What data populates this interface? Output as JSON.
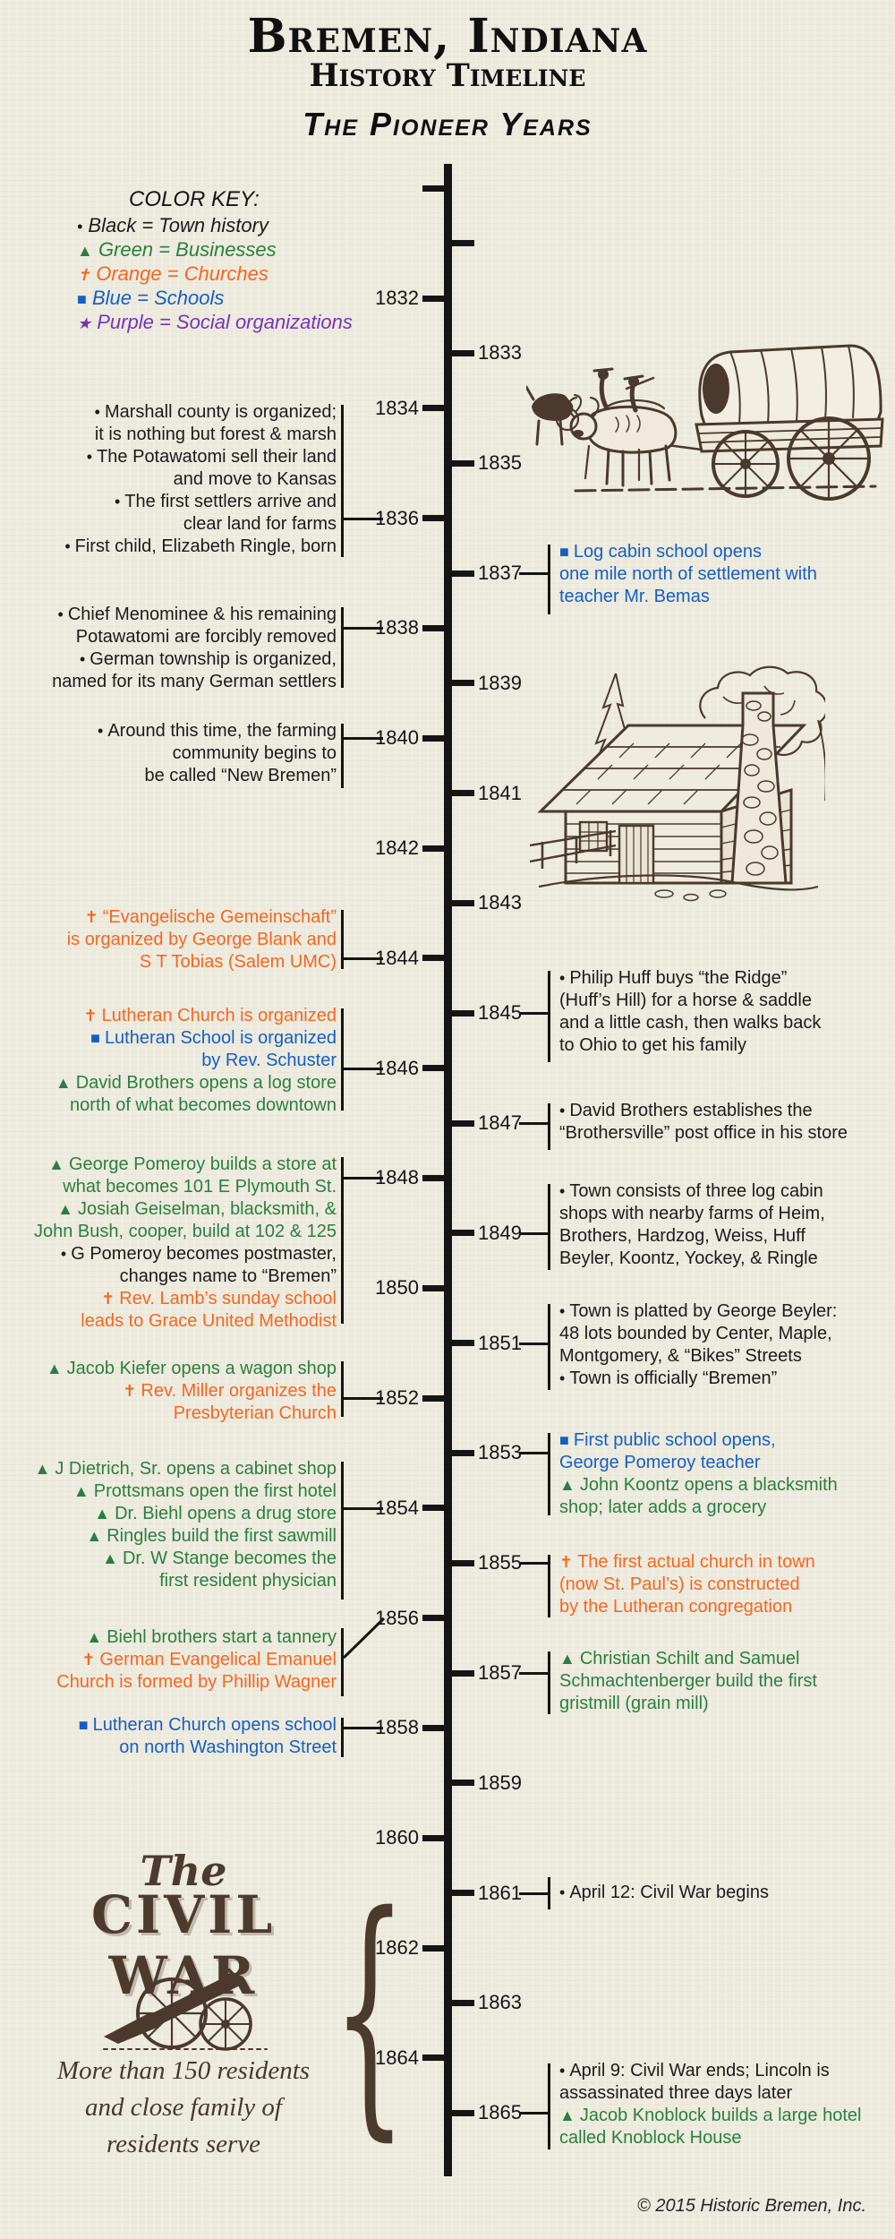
{
  "page": {
    "title_line1": "Bremen, Indiana",
    "title_line2": "History Timeline",
    "subtitle": "The Pioneer Years",
    "footer": "© 2015 Historic Bremen, Inc."
  },
  "colors": {
    "town": "#1b1b1b",
    "business": "#2a7f3f",
    "church": "#f4671f",
    "school": "#155fbf",
    "social": "#7634b8",
    "ink": "#151515",
    "sepia": "#4a392c",
    "paper": "#edeade"
  },
  "markers": {
    "town": "•",
    "business": "▲",
    "church": "✝",
    "school": "■",
    "social": "★"
  },
  "color_key": {
    "heading": "COLOR KEY:",
    "items": [
      {
        "category": "town",
        "label": "Black = Town history"
      },
      {
        "category": "business",
        "label": "Green = Businesses"
      },
      {
        "category": "church",
        "label": "Orange = Churches"
      },
      {
        "category": "school",
        "label": "Blue = Schools"
      },
      {
        "category": "social",
        "label": "Purple = Social organizations"
      }
    ]
  },
  "timeline": {
    "first_tick_year": 1830,
    "first_labeled_year": 1832,
    "last_year": 1865
  },
  "events": [
    {
      "id": "L1",
      "side": "left",
      "year": 1836,
      "items": [
        {
          "category": "town",
          "lines": [
            "Marshall county is organized;",
            "it is nothing but forest & marsh"
          ]
        },
        {
          "category": "town",
          "lines": [
            "The Potawatomi sell their land",
            "and move to Kansas"
          ]
        },
        {
          "category": "town",
          "lines": [
            "The first settlers arrive and",
            "clear land for farms"
          ]
        },
        {
          "category": "town",
          "lines": [
            "First child, Elizabeth Ringle, born"
          ]
        }
      ]
    },
    {
      "id": "L2",
      "side": "left",
      "year": 1838,
      "items": [
        {
          "category": "town",
          "lines": [
            "Chief Menominee & his remaining",
            "Potawatomi are forcibly removed"
          ]
        },
        {
          "category": "town",
          "lines": [
            "German township is organized,",
            "named for its many German settlers"
          ]
        }
      ]
    },
    {
      "id": "L3",
      "side": "left",
      "year": 1840,
      "items": [
        {
          "category": "town",
          "lines": [
            "Around this time, the farming",
            "community begins to",
            "be called “New Bremen”"
          ]
        }
      ]
    },
    {
      "id": "L4",
      "side": "left",
      "year": 1844,
      "items": [
        {
          "category": "church",
          "lines": [
            "“Evangelische Gemeinschaft”",
            "is organized by George Blank and",
            "S T Tobias (Salem UMC)"
          ]
        }
      ]
    },
    {
      "id": "L5",
      "side": "left",
      "year": 1846,
      "items": [
        {
          "category": "church",
          "lines": [
            "Lutheran Church is organized"
          ]
        },
        {
          "category": "school",
          "lines": [
            "Lutheran School is organized",
            "by Rev. Schuster"
          ]
        },
        {
          "category": "business",
          "lines": [
            "David Brothers opens a log store",
            "north of what becomes downtown"
          ]
        }
      ]
    },
    {
      "id": "L6",
      "side": "left",
      "year": 1848,
      "items": [
        {
          "category": "business",
          "lines": [
            "George Pomeroy builds a store at",
            "what becomes 101 E Plymouth St."
          ]
        },
        {
          "category": "business",
          "lines": [
            "Josiah Geiselman, blacksmith, &",
            "John Bush, cooper, build at 102 & 125"
          ]
        },
        {
          "category": "town",
          "lines": [
            "G Pomeroy becomes postmaster,",
            "changes name to “Bremen”"
          ]
        },
        {
          "category": "church",
          "lines": [
            "Rev. Lamb’s sunday school",
            "leads to Grace United Methodist"
          ]
        }
      ]
    },
    {
      "id": "L7",
      "side": "left",
      "year": 1852,
      "items": [
        {
          "category": "business",
          "lines": [
            "Jacob Kiefer opens a wagon shop"
          ]
        },
        {
          "category": "church",
          "lines": [
            "Rev. Miller organizes the",
            "Presbyterian Church"
          ]
        }
      ]
    },
    {
      "id": "L8",
      "side": "left",
      "year": 1854,
      "items": [
        {
          "category": "business",
          "lines": [
            "J Dietrich, Sr. opens a cabinet shop"
          ]
        },
        {
          "category": "business",
          "lines": [
            "Prottsmans open the first hotel"
          ]
        },
        {
          "category": "business",
          "lines": [
            "Dr. Biehl opens a drug store"
          ]
        },
        {
          "category": "business",
          "lines": [
            "Ringles build the first sawmill"
          ]
        },
        {
          "category": "business",
          "lines": [
            "Dr. W Stange becomes the",
            "first resident physician"
          ]
        }
      ]
    },
    {
      "id": "L9",
      "side": "left",
      "year": 1856,
      "items": [
        {
          "category": "business",
          "lines": [
            "Biehl brothers start a tannery"
          ]
        },
        {
          "category": "church",
          "lines": [
            "German Evangelical Emanuel",
            "Church is formed by Phillip Wagner"
          ]
        }
      ]
    },
    {
      "id": "L10",
      "side": "left",
      "year": 1858,
      "items": [
        {
          "category": "school",
          "lines": [
            "Lutheran Church opens school",
            "on north Washington Street"
          ]
        }
      ]
    },
    {
      "id": "R1",
      "side": "right",
      "year": 1837,
      "items": [
        {
          "category": "school",
          "lines": [
            "Log cabin school opens",
            "one mile north of settlement with",
            "teacher Mr. Bemas"
          ]
        }
      ]
    },
    {
      "id": "R2",
      "side": "right",
      "year": 1845,
      "items": [
        {
          "category": "town",
          "lines": [
            "Philip Huff buys “the Ridge”",
            "(Huff’s Hill) for a horse & saddle",
            "and a little cash, then walks back",
            "to Ohio to get his family"
          ]
        }
      ]
    },
    {
      "id": "R3",
      "side": "right",
      "year": 1847,
      "items": [
        {
          "category": "town",
          "lines": [
            "David Brothers establishes the",
            "“Brothersville” post office in his store"
          ]
        }
      ]
    },
    {
      "id": "R4",
      "side": "right",
      "year": 1849,
      "items": [
        {
          "category": "town",
          "lines": [
            "Town consists of three log cabin",
            "shops with nearby farms of Heim,",
            "Brothers, Hardzog, Weiss, Huff",
            "Beyler, Koontz, Yockey, & Ringle"
          ]
        }
      ]
    },
    {
      "id": "R5",
      "side": "right",
      "year": 1851,
      "items": [
        {
          "category": "town",
          "lines": [
            "Town is platted by George Beyler:",
            "48 lots bounded by Center, Maple,",
            "Montgomery, & “Bikes” Streets"
          ]
        },
        {
          "category": "town",
          "lines": [
            "Town is officially “Bremen”"
          ]
        }
      ]
    },
    {
      "id": "R6",
      "side": "right",
      "year": 1853,
      "items": [
        {
          "category": "school",
          "lines": [
            "First public school opens,",
            "George Pomeroy teacher"
          ]
        },
        {
          "category": "business",
          "lines": [
            "John Koontz opens a blacksmith",
            "shop; later adds a grocery"
          ]
        }
      ]
    },
    {
      "id": "R7",
      "side": "right",
      "year": 1855,
      "items": [
        {
          "category": "church",
          "lines": [
            "The first actual church in town",
            "(now St. Paul’s) is constructed",
            "by the Lutheran congregation"
          ]
        }
      ]
    },
    {
      "id": "R8",
      "side": "right",
      "year": 1857,
      "items": [
        {
          "category": "business",
          "lines": [
            "Christian Schilt and Samuel",
            "Schmachtenberger build the first",
            "gristmill (grain mill)"
          ]
        }
      ]
    },
    {
      "id": "R9",
      "side": "right",
      "year": 1861,
      "items": [
        {
          "category": "town",
          "lines": [
            "April 12: Civil War begins"
          ]
        }
      ]
    },
    {
      "id": "R10",
      "side": "right",
      "year": 1865,
      "items": [
        {
          "category": "town",
          "lines": [
            "April 9: Civil War ends; Lincoln is",
            "assassinated three days later"
          ]
        },
        {
          "category": "business",
          "lines": [
            "Jacob Knoblock builds a large hotel",
            "called Knoblock House"
          ]
        }
      ]
    }
  ],
  "civil_war": {
    "pre": "The",
    "title": "CIVIL WAR",
    "brace": "{",
    "caption_lines": [
      "More than 150 residents",
      "and close family of",
      "residents serve"
    ]
  },
  "illustrations": {
    "wagon": "covered-wagon",
    "cabin": "log-cabin",
    "cannon": "cannon"
  }
}
